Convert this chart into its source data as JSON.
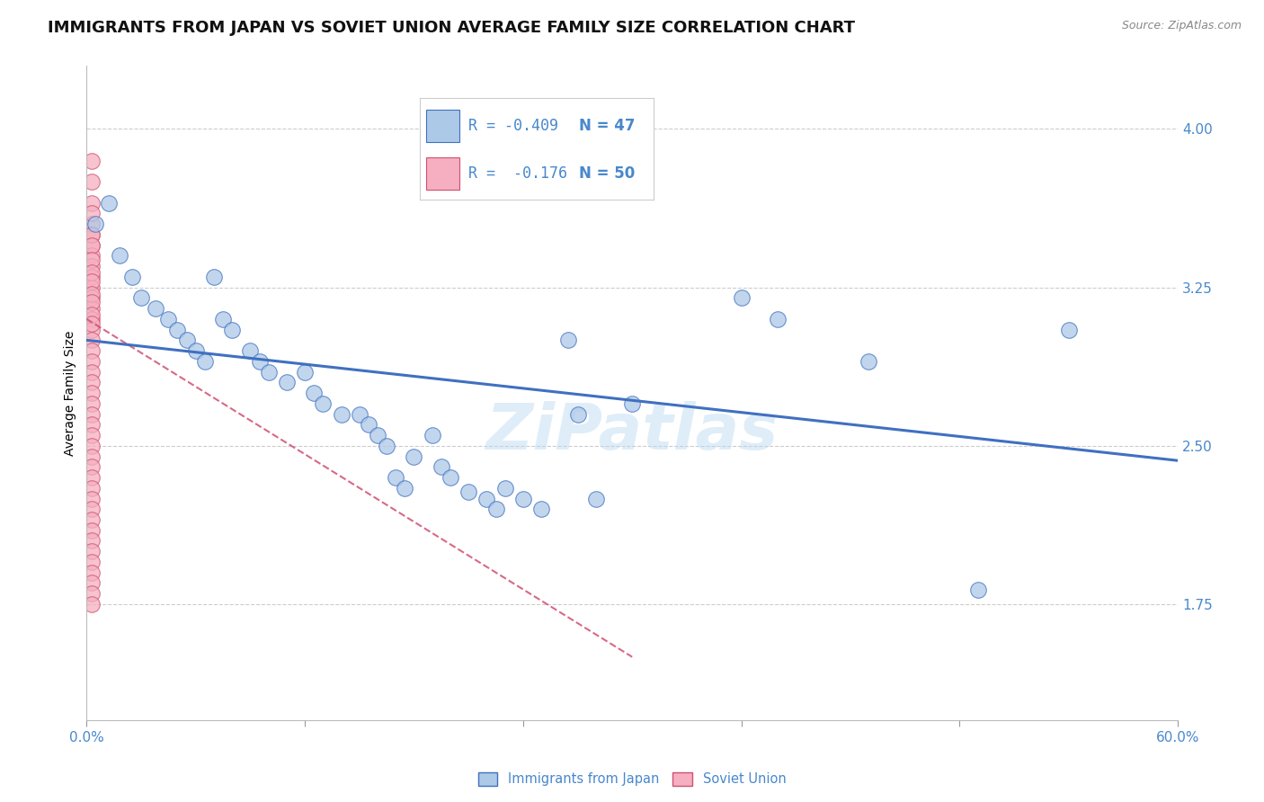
{
  "title": "IMMIGRANTS FROM JAPAN VS SOVIET UNION AVERAGE FAMILY SIZE CORRELATION CHART",
  "source": "Source: ZipAtlas.com",
  "ylabel": "Average Family Size",
  "yticks": [
    1.75,
    2.5,
    3.25,
    4.0
  ],
  "xlim": [
    0.0,
    0.6
  ],
  "ylim": [
    1.2,
    4.3
  ],
  "legend_japan_R": "-0.409",
  "legend_japan_N": "47",
  "legend_soviet_R": "-0.176",
  "legend_soviet_N": "50",
  "japan_color": "#adc9e8",
  "soviet_color": "#f5afc0",
  "japan_line_color": "#4070c0",
  "soviet_line_color": "#d05070",
  "background_color": "#ffffff",
  "grid_color": "#c8c8c8",
  "japan_points_x": [
    0.005,
    0.012,
    0.018,
    0.025,
    0.03,
    0.038,
    0.045,
    0.05,
    0.055,
    0.06,
    0.065,
    0.07,
    0.075,
    0.08,
    0.09,
    0.095,
    0.1,
    0.11,
    0.12,
    0.125,
    0.13,
    0.14,
    0.15,
    0.155,
    0.16,
    0.165,
    0.17,
    0.175,
    0.18,
    0.19,
    0.195,
    0.2,
    0.21,
    0.22,
    0.225,
    0.23,
    0.24,
    0.25,
    0.265,
    0.28,
    0.3,
    0.36,
    0.38,
    0.43,
    0.49,
    0.54,
    0.27
  ],
  "japan_points_y": [
    3.55,
    3.65,
    3.4,
    3.3,
    3.2,
    3.15,
    3.1,
    3.05,
    3.0,
    2.95,
    2.9,
    3.3,
    3.1,
    3.05,
    2.95,
    2.9,
    2.85,
    2.8,
    2.85,
    2.75,
    2.7,
    2.65,
    2.65,
    2.6,
    2.55,
    2.5,
    2.35,
    2.3,
    2.45,
    2.55,
    2.4,
    2.35,
    2.28,
    2.25,
    2.2,
    2.3,
    2.25,
    2.2,
    3.0,
    2.25,
    2.7,
    3.2,
    3.1,
    2.9,
    1.82,
    3.05,
    2.65
  ],
  "soviet_points_x": [
    0.003,
    0.003,
    0.003,
    0.003,
    0.003,
    0.003,
    0.003,
    0.003,
    0.003,
    0.003,
    0.003,
    0.003,
    0.003,
    0.003,
    0.003,
    0.003,
    0.003,
    0.003,
    0.003,
    0.003,
    0.003,
    0.003,
    0.003,
    0.003,
    0.003,
    0.003,
    0.003,
    0.003,
    0.003,
    0.003,
    0.003,
    0.003,
    0.003,
    0.003,
    0.003,
    0.003,
    0.003,
    0.003,
    0.003,
    0.003,
    0.003,
    0.003,
    0.003,
    0.003,
    0.003,
    0.003,
    0.003,
    0.003,
    0.003,
    0.003
  ],
  "soviet_points_y": [
    3.85,
    3.75,
    3.65,
    3.55,
    3.5,
    3.45,
    3.4,
    3.35,
    3.3,
    3.25,
    3.2,
    3.15,
    3.1,
    3.05,
    3.0,
    2.95,
    2.9,
    2.85,
    2.8,
    2.75,
    2.7,
    2.65,
    2.6,
    2.55,
    2.5,
    2.45,
    2.4,
    2.35,
    2.3,
    2.25,
    2.2,
    2.15,
    2.1,
    2.05,
    2.0,
    1.95,
    1.9,
    1.85,
    1.8,
    1.75,
    3.6,
    3.5,
    3.45,
    3.38,
    3.32,
    3.28,
    3.22,
    3.18,
    3.12,
    3.08
  ],
  "japan_trendline_x": [
    0.0,
    0.6
  ],
  "japan_trendline_y": [
    3.0,
    2.43
  ],
  "soviet_trendline_x": [
    0.0,
    0.3
  ],
  "soviet_trendline_y": [
    3.1,
    1.5
  ],
  "watermark": "ZiPatlas",
  "title_fontsize": 13,
  "axis_label_fontsize": 10,
  "tick_fontsize": 11,
  "legend_fontsize": 12
}
